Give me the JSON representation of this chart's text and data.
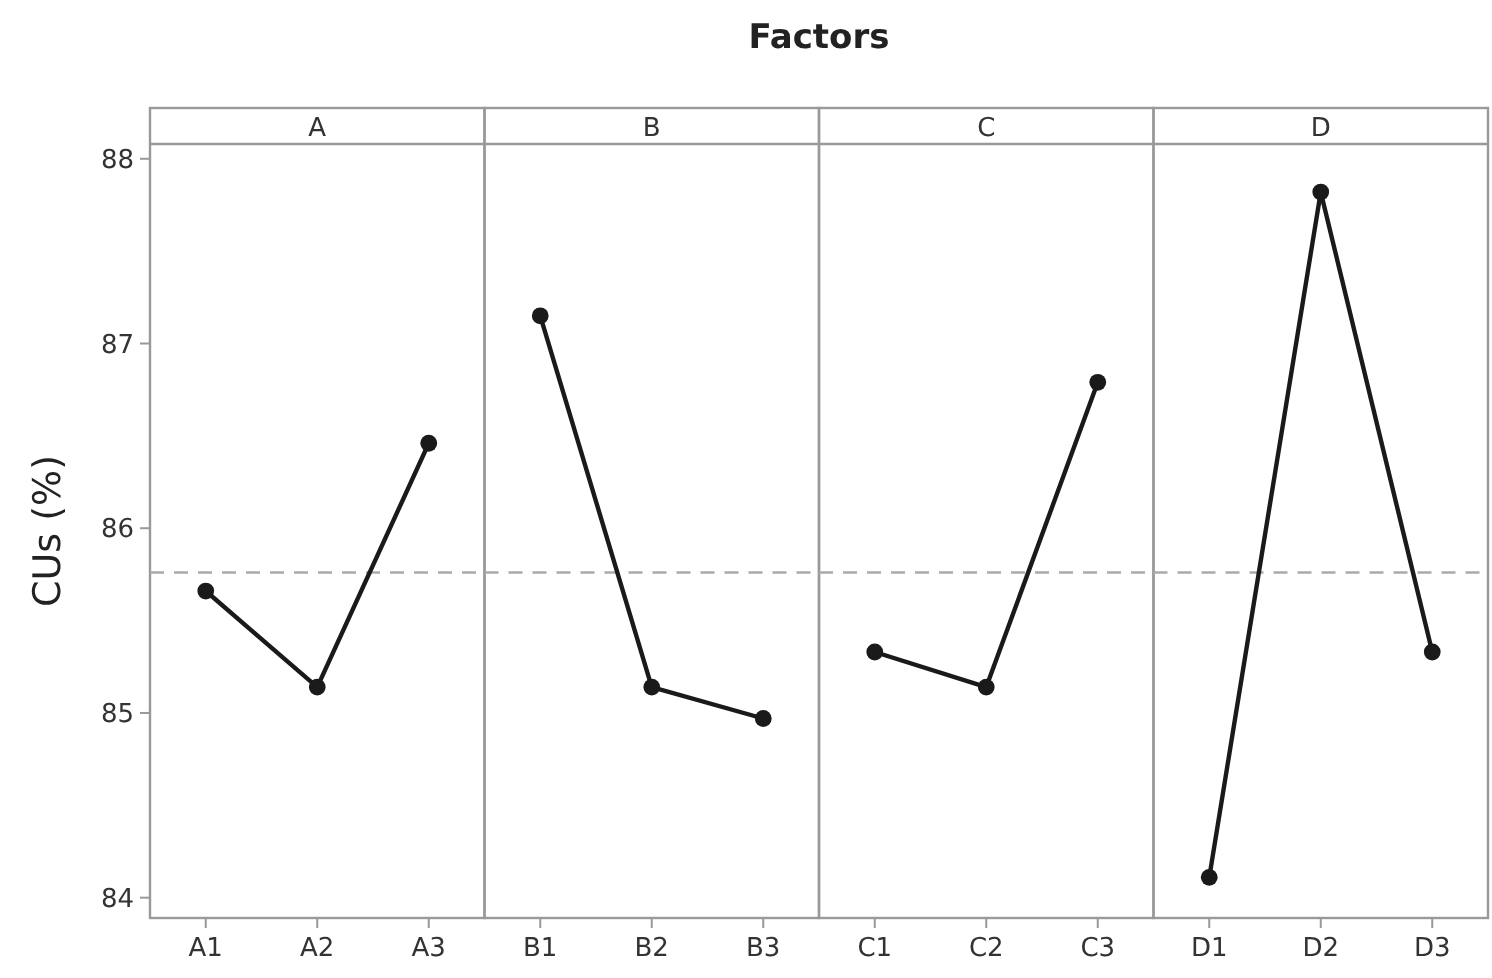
{
  "chart_data": [
    {
      "type": "line",
      "title": "A",
      "ylabel": "CUs (%)",
      "annotations": [
        "Factors"
      ],
      "categories": [
        "A1",
        "A2",
        "A3"
      ],
      "series": [
        {
          "color": "#1a1a1a",
          "values": [
            85.66,
            85.14,
            86.46
          ]
        }
      ],
      "ylim": [
        83.89,
        88.08
      ],
      "yticks": [
        84,
        85,
        86,
        87,
        88
      ],
      "ref_lines": [
        {
          "axis": "y",
          "value": 85.76,
          "color": "#aaaaaa",
          "line_style": "dashed"
        }
      ],
      "marker": "circle",
      "grid": false
    },
    {
      "type": "line",
      "title": "B",
      "categories": [
        "B1",
        "B2",
        "B3"
      ],
      "series": [
        {
          "color": "#1a1a1a",
          "values": [
            87.15,
            85.14,
            84.97
          ]
        }
      ],
      "ylim": [
        83.89,
        88.08
      ],
      "tick_labels": "x",
      "ref_lines": [
        {
          "axis": "y",
          "value": 85.76,
          "color": "#aaaaaa",
          "line_style": "dashed"
        }
      ],
      "marker": "circle",
      "grid": false
    },
    {
      "type": "line",
      "title": "C",
      "categories": [
        "C1",
        "C2",
        "C3"
      ],
      "series": [
        {
          "color": "#1a1a1a",
          "values": [
            85.33,
            85.14,
            86.79
          ]
        }
      ],
      "ylim": [
        83.89,
        88.08
      ],
      "tick_labels": "x",
      "ref_lines": [
        {
          "axis": "y",
          "value": 85.76,
          "color": "#aaaaaa",
          "line_style": "dashed"
        }
      ],
      "marker": "circle",
      "grid": false
    },
    {
      "type": "line",
      "title": "D",
      "categories": [
        "D1",
        "D2",
        "D3"
      ],
      "series": [
        {
          "color": "#1a1a1a",
          "values": [
            84.11,
            87.82,
            85.33
          ]
        }
      ],
      "ylim": [
        83.89,
        88.08
      ],
      "tick_labels": "x",
      "ref_lines": [
        {
          "axis": "y",
          "value": 85.76,
          "color": "#aaaaaa",
          "line_style": "dashed"
        }
      ],
      "marker": "circle",
      "grid": false
    }
  ]
}
